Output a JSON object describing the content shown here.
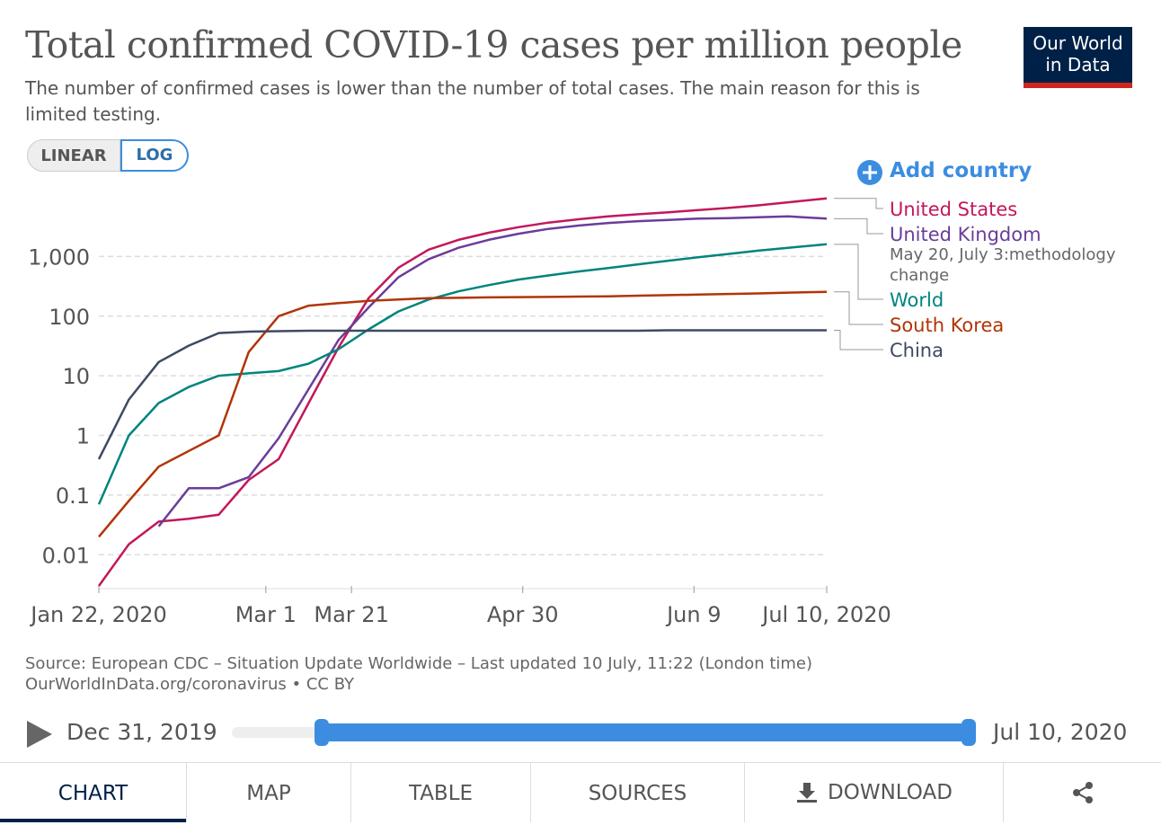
{
  "chart_data": {
    "type": "line",
    "title": "Total confirmed COVID-19 cases per million people",
    "subtitle": "The number of confirmed cases is lower than the number of total cases. The main reason for this is limited testing.",
    "x": [
      "2020-01-22",
      "2020-01-29",
      "2020-02-05",
      "2020-02-12",
      "2020-02-19",
      "2020-02-26",
      "2020-03-04",
      "2020-03-11",
      "2020-03-18",
      "2020-03-25",
      "2020-04-01",
      "2020-04-08",
      "2020-04-15",
      "2020-04-22",
      "2020-04-29",
      "2020-05-06",
      "2020-05-13",
      "2020-05-20",
      "2020-05-27",
      "2020-06-03",
      "2020-06-10",
      "2020-06-17",
      "2020-06-24",
      "2020-07-01",
      "2020-07-10"
    ],
    "xlim": [
      "2020-01-22",
      "2020-07-10"
    ],
    "xticks": [
      {
        "value": "2020-01-22",
        "label": "Jan 22, 2020"
      },
      {
        "value": "2020-03-01",
        "label": "Mar 1"
      },
      {
        "value": "2020-03-21",
        "label": "Mar 21"
      },
      {
        "value": "2020-04-30",
        "label": "Apr 30"
      },
      {
        "value": "2020-06-09",
        "label": "Jun 9"
      },
      {
        "value": "2020-07-10",
        "label": "Jul 10, 2020"
      }
    ],
    "ylim": [
      0.003,
      10000
    ],
    "yticks": [
      0.01,
      0.1,
      1,
      10,
      100,
      {
        "value": 1000,
        "label": "1,000"
      }
    ],
    "log_y": true,
    "grid": true,
    "series": [
      {
        "name": "United States",
        "color": "#c2185b",
        "values": [
          0.003,
          0.015,
          0.036,
          0.04,
          0.047,
          0.18,
          0.4,
          3.5,
          30,
          200,
          650,
          1300,
          1900,
          2500,
          3100,
          3700,
          4200,
          4700,
          5100,
          5500,
          6000,
          6500,
          7200,
          8100,
          9400
        ]
      },
      {
        "name": "United Kingdom",
        "color": "#6a3d9a",
        "annotation": "May 20, July 3:methodology change",
        "values": [
          null,
          null,
          0.03,
          0.13,
          0.13,
          0.2,
          0.9,
          6,
          40,
          140,
          450,
          900,
          1400,
          1900,
          2400,
          2900,
          3300,
          3650,
          3900,
          4100,
          4300,
          4400,
          4550,
          4700,
          4300
        ]
      },
      {
        "name": "World",
        "color": "#00847e",
        "values": [
          0.07,
          1.0,
          3.5,
          6.5,
          10,
          11,
          12,
          16,
          28,
          60,
          120,
          190,
          260,
          330,
          410,
          480,
          560,
          640,
          740,
          850,
          970,
          1100,
          1250,
          1400,
          1600
        ]
      },
      {
        "name": "South Korea",
        "color": "#b13507",
        "values": [
          0.02,
          0.08,
          0.3,
          0.55,
          1.0,
          25,
          100,
          150,
          165,
          180,
          190,
          200,
          203,
          206,
          208,
          210,
          213,
          215,
          220,
          225,
          230,
          235,
          240,
          248,
          255
        ]
      },
      {
        "name": "China",
        "color": "#3d4a63",
        "values": [
          0.4,
          4,
          17,
          32,
          52,
          55,
          56,
          57,
          57,
          57,
          57,
          57,
          57,
          57,
          57,
          57,
          57,
          57,
          57,
          58,
          58,
          58,
          58,
          58,
          58
        ]
      }
    ]
  },
  "logo": [
    "Our World",
    "in Data"
  ],
  "scale_buttons": [
    "LINEAR",
    "LOG"
  ],
  "add_country": "Add country",
  "source": "Source: European CDC – Situation Update Worldwide – Last updated 10 July, 11:22 (London time)",
  "url_license": "OurWorldInData.org/coronavirus • CC BY",
  "timeline": {
    "start": "Dec 31, 2019",
    "end": "Jul 10, 2020"
  },
  "tabs": [
    "CHART",
    "MAP",
    "TABLE",
    "SOURCES",
    "DOWNLOAD"
  ]
}
